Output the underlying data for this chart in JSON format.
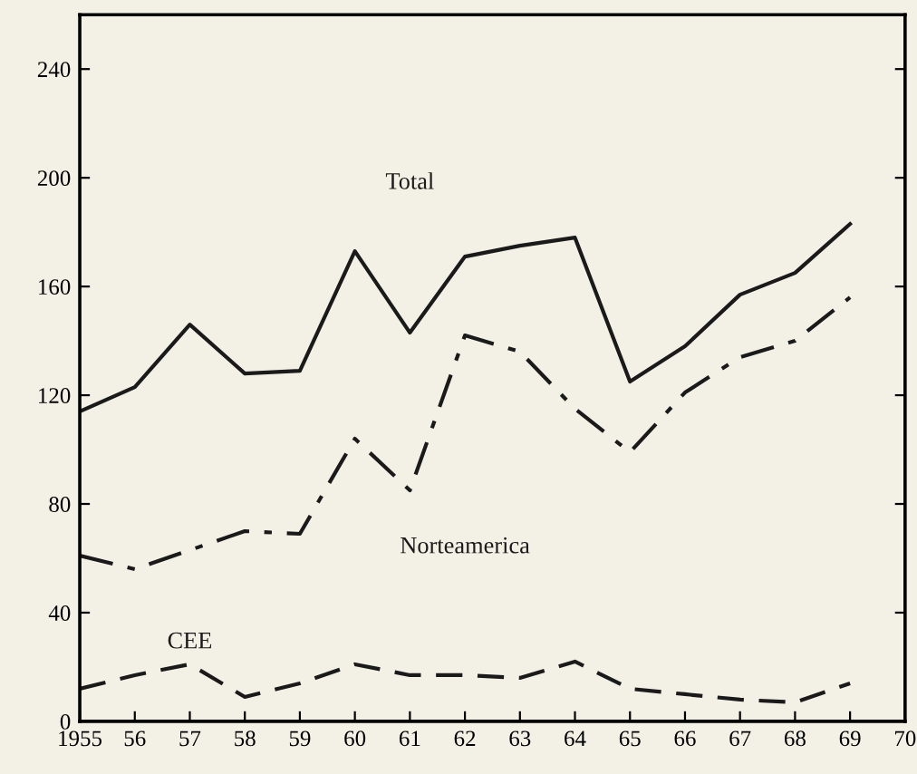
{
  "chart_data": {
    "type": "line",
    "x": [
      1955,
      1956,
      1957,
      1958,
      1959,
      1960,
      1961,
      1962,
      1963,
      1964,
      1965,
      1966,
      1967,
      1968,
      1969
    ],
    "series": [
      {
        "name": "Total",
        "color": "#1a1a1a",
        "line_style": "solid",
        "values": [
          114,
          123,
          146,
          128,
          129,
          173,
          143,
          171,
          175,
          178,
          125,
          138,
          157,
          165,
          183
        ]
      },
      {
        "name": "Norteamerica",
        "color": "#1a1a1a",
        "line_style": "dashdot",
        "values": [
          61,
          56,
          63,
          70,
          69,
          104,
          85,
          142,
          136,
          115,
          99,
          121,
          134,
          140,
          156
        ]
      },
      {
        "name": "CEE",
        "color": "#1a1a1a",
        "line_style": "dashed",
        "values": [
          12,
          17,
          21,
          9,
          14,
          21,
          17,
          17,
          16,
          22,
          12,
          10,
          8,
          7,
          14
        ]
      }
    ],
    "xlim": [
      1955,
      1970
    ],
    "ylim": [
      0,
      260
    ],
    "xticks": [
      {
        "value": 1955,
        "label": "1955"
      },
      {
        "value": 1956,
        "label": "56"
      },
      {
        "value": 1957,
        "label": "57"
      },
      {
        "value": 1958,
        "label": "58"
      },
      {
        "value": 1959,
        "label": "59"
      },
      {
        "value": 1960,
        "label": "60"
      },
      {
        "value": 1961,
        "label": "61"
      },
      {
        "value": 1962,
        "label": "62"
      },
      {
        "value": 1963,
        "label": "63"
      },
      {
        "value": 1964,
        "label": "64"
      },
      {
        "value": 1965,
        "label": "65"
      },
      {
        "value": 1966,
        "label": "66"
      },
      {
        "value": 1967,
        "label": "67"
      },
      {
        "value": 1968,
        "label": "68"
      },
      {
        "value": 1969,
        "label": "69"
      },
      {
        "value": 1970,
        "label": "70"
      }
    ],
    "yticks": [
      0,
      40,
      80,
      120,
      160,
      200,
      240
    ],
    "grid": false,
    "legend": false,
    "marker": "none"
  }
}
